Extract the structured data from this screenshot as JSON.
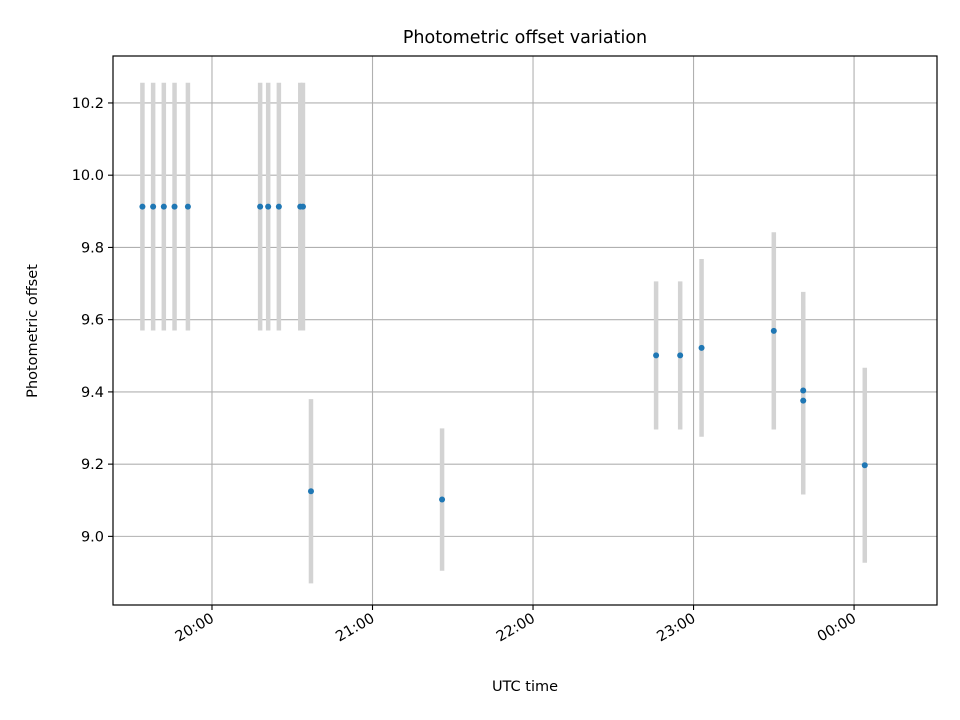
{
  "chart_data": {
    "type": "scatter",
    "title": "Photometric offset variation",
    "xlabel": "UTC time",
    "ylabel": "Photometric offset",
    "x_axis": {
      "kind": "time",
      "range": [
        "19:23",
        "00:31"
      ],
      "ticks": [
        {
          "value": "20:00",
          "label": "20:00"
        },
        {
          "value": "21:00",
          "label": "21:00"
        },
        {
          "value": "22:00",
          "label": "22:00"
        },
        {
          "value": "23:00",
          "label": "23:00"
        },
        {
          "value": "00:00",
          "label": "00:00"
        }
      ]
    },
    "ylim": [
      8.81,
      10.33
    ],
    "y_ticks": [
      9.0,
      9.2,
      9.4,
      9.6,
      9.8,
      10.0,
      10.2
    ],
    "y_tick_labels": [
      "9.0",
      "9.2",
      "9.4",
      "9.6",
      "9.8",
      "10.0",
      "10.2"
    ],
    "grid": true,
    "marker_color": "#1f77b4",
    "errorbar_color": "#d3d3d3",
    "points": [
      {
        "x": "19:34",
        "y": 9.913,
        "yerr": 0.343
      },
      {
        "x": "19:38",
        "y": 9.913,
        "yerr": 0.343
      },
      {
        "x": "19:42",
        "y": 9.913,
        "yerr": 0.343
      },
      {
        "x": "19:46",
        "y": 9.913,
        "yerr": 0.343
      },
      {
        "x": "19:51",
        "y": 9.913,
        "yerr": 0.343
      },
      {
        "x": "20:18",
        "y": 9.913,
        "yerr": 0.343
      },
      {
        "x": "20:21",
        "y": 9.913,
        "yerr": 0.343
      },
      {
        "x": "20:25",
        "y": 9.913,
        "yerr": 0.343
      },
      {
        "x": "20:33",
        "y": 9.913,
        "yerr": 0.343
      },
      {
        "x": "20:34",
        "y": 9.913,
        "yerr": 0.343
      },
      {
        "x": "20:37",
        "y": 9.125,
        "yerr": 0.255
      },
      {
        "x": "21:26",
        "y": 9.102,
        "yerr": 0.197
      },
      {
        "x": "22:46",
        "y": 9.501,
        "yerr": 0.205
      },
      {
        "x": "22:55",
        "y": 9.501,
        "yerr": 0.205
      },
      {
        "x": "23:03",
        "y": 9.522,
        "yerr": 0.246
      },
      {
        "x": "23:30",
        "y": 9.569,
        "yerr": 0.273
      },
      {
        "x": "23:41",
        "y": 9.404,
        "yerr": 0.273
      },
      {
        "x": "23:41",
        "y": 9.376,
        "yerr": 0.26
      },
      {
        "x": "00:04",
        "y": 9.197,
        "yerr": 0.27
      }
    ]
  }
}
